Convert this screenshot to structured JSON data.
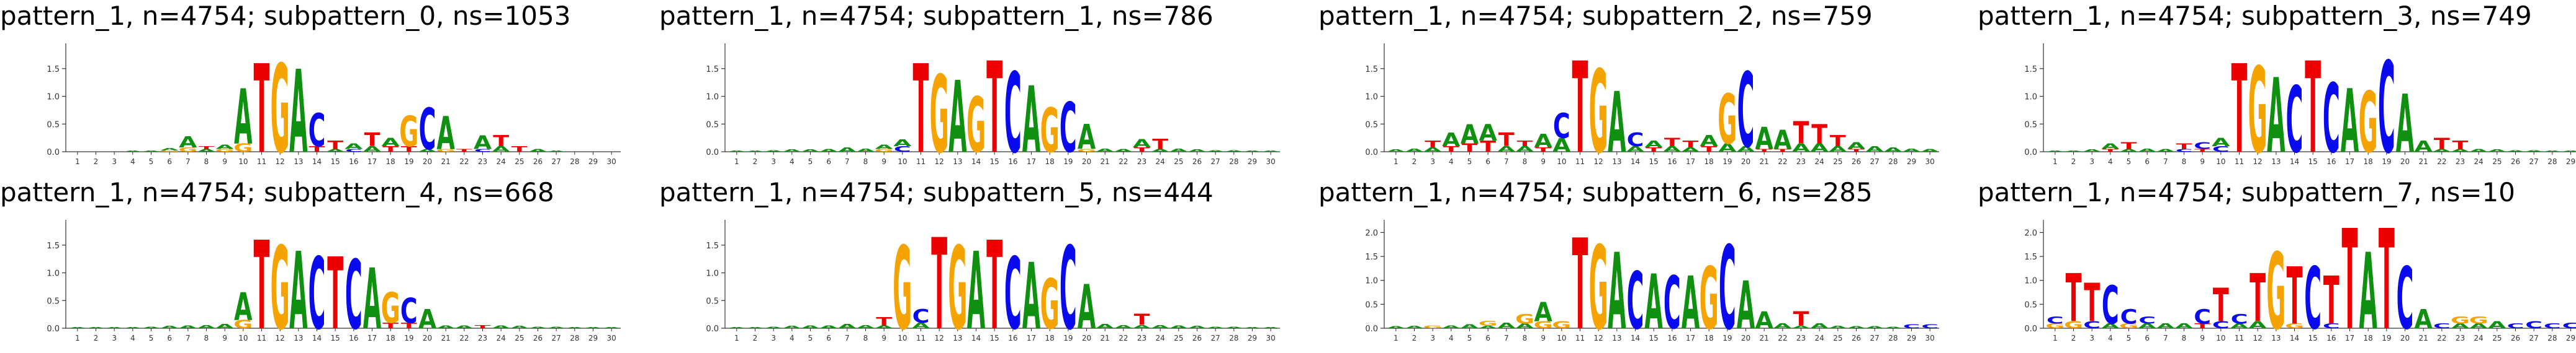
{
  "colors": {
    "A": "#109010",
    "C": "#0a0aee",
    "G": "#f5a300",
    "T": "#ee0000"
  },
  "chart_data": [
    {
      "type": "sequence-logo",
      "title": "pattern_1, n=4754; subpattern_0, ns=1053",
      "positions": [
        "1",
        "2",
        "3",
        "4",
        "5",
        "6",
        "7",
        "8",
        "9",
        "10",
        "11",
        "12",
        "13",
        "14",
        "15",
        "16",
        "17",
        "18",
        "19",
        "20",
        "21",
        "22",
        "23",
        "24",
        "25",
        "26",
        "27",
        "28",
        "29",
        "30"
      ],
      "yticks": [
        "0.0",
        "0.5",
        "1.0",
        "1.5"
      ],
      "ylim": [
        0,
        1.9
      ],
      "columns": [
        {},
        {},
        {},
        {
          "A": 0.02
        },
        {
          "A": 0.02
        },
        {
          "A": 0.04,
          "G": 0.02
        },
        {
          "A": 0.2,
          "G": 0.08
        },
        {
          "A": 0.05,
          "T": 0.05
        },
        {
          "A": 0.08,
          "G": 0.05
        },
        {
          "A": 1.0,
          "G": 0.15
        },
        {
          "T": 1.6
        },
        {
          "G": 1.6
        },
        {
          "A": 1.5
        },
        {
          "C": 0.6,
          "T": 0.1
        },
        {
          "T": 0.15,
          "A": 0.05
        },
        {
          "A": 0.1,
          "C": 0.05
        },
        {
          "T": 0.25,
          "A": 0.1
        },
        {
          "A": 0.15,
          "T": 0.1
        },
        {
          "G": 0.55,
          "T": 0.1
        },
        {
          "C": 0.75,
          "A": 0.05
        },
        {
          "A": 0.6,
          "G": 0.05
        },
        {
          "T": 0.05
        },
        {
          "A": 0.25,
          "C": 0.05
        },
        {
          "T": 0.2,
          "A": 0.1
        },
        {
          "T": 0.1
        },
        {
          "A": 0.05
        },
        {
          "A": 0.02
        },
        {},
        {},
        {}
      ]
    },
    {
      "type": "sequence-logo",
      "title": "pattern_1, n=4754; subpattern_1, ns=786",
      "positions": [
        "1",
        "2",
        "3",
        "4",
        "5",
        "6",
        "7",
        "8",
        "9",
        "10",
        "11",
        "12",
        "13",
        "14",
        "15",
        "16",
        "17",
        "18",
        "19",
        "20",
        "21",
        "22",
        "23",
        "24",
        "25",
        "26",
        "27",
        "28",
        "29",
        "30"
      ],
      "yticks": [
        "0.0",
        "0.5",
        "1.0",
        "1.5"
      ],
      "ylim": [
        0,
        1.9
      ],
      "columns": [
        {
          "A": 0.02
        },
        {
          "A": 0.02
        },
        {
          "A": 0.03
        },
        {
          "A": 0.04
        },
        {
          "A": 0.04
        },
        {
          "A": 0.05
        },
        {
          "A": 0.08
        },
        {
          "A": 0.06
        },
        {
          "A": 0.08,
          "G": 0.05
        },
        {
          "A": 0.12,
          "C": 0.1
        },
        {
          "T": 1.6
        },
        {
          "G": 1.4
        },
        {
          "A": 1.3
        },
        {
          "G": 1.0
        },
        {
          "T": 1.65
        },
        {
          "C": 1.45
        },
        {
          "A": 1.2
        },
        {
          "G": 0.8
        },
        {
          "C": 0.9
        },
        {
          "A": 0.45,
          "G": 0.05
        },
        {
          "A": 0.06
        },
        {
          "A": 0.05
        },
        {
          "A": 0.15,
          "T": 0.08
        },
        {
          "T": 0.18,
          "A": 0.05
        },
        {
          "A": 0.06
        },
        {
          "A": 0.04
        },
        {
          "A": 0.03
        },
        {
          "A": 0.03
        },
        {
          "A": 0.02
        },
        {
          "A": 0.02
        }
      ]
    },
    {
      "type": "sequence-logo",
      "title": "pattern_1, n=4754; subpattern_2, ns=759",
      "positions": [
        "1",
        "2",
        "3",
        "4",
        "5",
        "6",
        "7",
        "8",
        "9",
        "10",
        "11",
        "12",
        "13",
        "14",
        "15",
        "16",
        "17",
        "18",
        "19",
        "20",
        "21",
        "22",
        "23",
        "24",
        "25",
        "26",
        "27",
        "28",
        "29",
        "30"
      ],
      "yticks": [
        "0.0",
        "0.5",
        "1.0",
        "1.5"
      ],
      "ylim": [
        0,
        1.9
      ],
      "columns": [
        {
          "A": 0.04
        },
        {
          "A": 0.06
        },
        {
          "T": 0.12,
          "A": 0.08
        },
        {
          "A": 0.25,
          "T": 0.1
        },
        {
          "A": 0.35,
          "T": 0.15
        },
        {
          "A": 0.3,
          "T": 0.2
        },
        {
          "T": 0.25,
          "A": 0.1
        },
        {
          "A": 0.1,
          "T": 0.1
        },
        {
          "A": 0.25,
          "T": 0.08
        },
        {
          "C": 0.45,
          "A": 0.25
        },
        {
          "T": 1.65
        },
        {
          "G": 1.5
        },
        {
          "A": 1.1
        },
        {
          "C": 0.25,
          "A": 0.1
        },
        {
          "A": 0.12,
          "T": 0.08
        },
        {
          "T": 0.15,
          "A": 0.1
        },
        {
          "T": 0.12,
          "A": 0.08
        },
        {
          "A": 0.2,
          "T": 0.1
        },
        {
          "G": 0.9,
          "A": 0.15
        },
        {
          "C": 1.35,
          "A": 0.1
        },
        {
          "A": 0.4,
          "T": 0.05
        },
        {
          "A": 0.35,
          "T": 0.05
        },
        {
          "T": 0.4,
          "A": 0.15
        },
        {
          "T": 0.35,
          "A": 0.15
        },
        {
          "T": 0.2,
          "A": 0.1
        },
        {
          "A": 0.12,
          "T": 0.05
        },
        {
          "A": 0.1
        },
        {
          "A": 0.08
        },
        {
          "A": 0.06
        },
        {
          "A": 0.05
        }
      ]
    },
    {
      "type": "sequence-logo",
      "title": "pattern_1, n=4754; subpattern_3, ns=749",
      "positions": [
        "1",
        "2",
        "3",
        "4",
        "5",
        "6",
        "7",
        "8",
        "9",
        "10",
        "11",
        "12",
        "13",
        "14",
        "15",
        "16",
        "17",
        "18",
        "19",
        "20",
        "21",
        "22",
        "23",
        "24",
        "25",
        "26",
        "27",
        "28",
        "29",
        "30"
      ],
      "yticks": [
        "0.0",
        "0.5",
        "1.0",
        "1.5"
      ],
      "ylim": [
        0,
        1.9
      ],
      "columns": [
        {
          "A": 0.02
        },
        {
          "A": 0.02
        },
        {
          "A": 0.04
        },
        {
          "A": 0.1,
          "T": 0.05
        },
        {
          "T": 0.12,
          "A": 0.05
        },
        {
          "A": 0.06
        },
        {
          "A": 0.05
        },
        {
          "T": 0.1,
          "C": 0.05
        },
        {
          "C": 0.12,
          "T": 0.05
        },
        {
          "A": 0.15,
          "C": 0.1
        },
        {
          "T": 1.6
        },
        {
          "G": 1.55
        },
        {
          "A": 1.35
        },
        {
          "C": 1.2
        },
        {
          "T": 1.65
        },
        {
          "C": 1.25
        },
        {
          "A": 1.15
        },
        {
          "G": 1.1
        },
        {
          "C": 1.65
        },
        {
          "A": 1.05
        },
        {
          "A": 0.2
        },
        {
          "T": 0.2,
          "A": 0.05
        },
        {
          "T": 0.15,
          "A": 0.05
        },
        {
          "A": 0.05
        },
        {
          "A": 0.04
        },
        {
          "A": 0.03
        },
        {
          "A": 0.03
        },
        {
          "A": 0.02
        },
        {
          "A": 0.02
        },
        {
          "A": 0.02
        }
      ]
    },
    {
      "type": "sequence-logo",
      "title": "pattern_1, n=4754; subpattern_4, ns=668",
      "positions": [
        "1",
        "2",
        "3",
        "4",
        "5",
        "6",
        "7",
        "8",
        "9",
        "10",
        "11",
        "12",
        "13",
        "14",
        "15",
        "16",
        "17",
        "18",
        "19",
        "20",
        "21",
        "22",
        "23",
        "24",
        "25",
        "26",
        "27",
        "28",
        "29",
        "30"
      ],
      "yticks": [
        "0.0",
        "0.5",
        "1.0",
        "1.5"
      ],
      "ylim": [
        0,
        1.9
      ],
      "columns": [
        {
          "A": 0.02
        },
        {
          "A": 0.02
        },
        {
          "A": 0.02
        },
        {
          "A": 0.02
        },
        {
          "A": 0.03
        },
        {
          "A": 0.04
        },
        {
          "A": 0.05
        },
        {
          "A": 0.06
        },
        {
          "A": 0.08
        },
        {
          "A": 0.5,
          "G": 0.15
        },
        {
          "T": 1.6
        },
        {
          "G": 1.5
        },
        {
          "A": 1.4
        },
        {
          "C": 1.3
        },
        {
          "T": 1.3
        },
        {
          "C": 1.25
        },
        {
          "A": 1.1
        },
        {
          "G": 0.55,
          "T": 0.1
        },
        {
          "C": 0.45,
          "T": 0.1
        },
        {
          "A": 0.35
        },
        {
          "A": 0.05
        },
        {
          "A": 0.05
        },
        {
          "T": 0.06
        },
        {
          "A": 0.05
        },
        {
          "A": 0.04
        },
        {
          "A": 0.03
        },
        {
          "A": 0.03
        },
        {
          "A": 0.02
        },
        {
          "A": 0.02
        },
        {
          "A": 0.02
        }
      ]
    },
    {
      "type": "sequence-logo",
      "title": "pattern_1, n=4754; subpattern_5, ns=444",
      "positions": [
        "1",
        "2",
        "3",
        "4",
        "5",
        "6",
        "7",
        "8",
        "9",
        "10",
        "11",
        "12",
        "13",
        "14",
        "15",
        "16",
        "17",
        "18",
        "19",
        "20",
        "21",
        "22",
        "23",
        "24",
        "25",
        "26",
        "27",
        "28",
        "29",
        "30"
      ],
      "yticks": [
        "0.0",
        "0.5",
        "1.0",
        "1.5"
      ],
      "ylim": [
        0,
        1.9
      ],
      "columns": [
        {
          "A": 0.02
        },
        {
          "A": 0.02
        },
        {
          "A": 0.03
        },
        {
          "A": 0.04
        },
        {
          "A": 0.05
        },
        {
          "A": 0.05
        },
        {
          "A": 0.08
        },
        {
          "A": 0.06
        },
        {
          "T": 0.15,
          "A": 0.05
        },
        {
          "G": 1.5
        },
        {
          "C": 0.25,
          "A": 0.1
        },
        {
          "T": 1.65
        },
        {
          "G": 1.5
        },
        {
          "A": 1.4
        },
        {
          "T": 1.6
        },
        {
          "C": 1.3
        },
        {
          "A": 1.2
        },
        {
          "G": 0.9
        },
        {
          "C": 1.5
        },
        {
          "A": 0.8
        },
        {
          "A": 0.08
        },
        {
          "A": 0.06
        },
        {
          "T": 0.2,
          "A": 0.06
        },
        {
          "A": 0.06
        },
        {
          "A": 0.05
        },
        {
          "A": 0.04
        },
        {
          "A": 0.03
        },
        {
          "A": 0.03
        },
        {
          "A": 0.02
        },
        {
          "A": 0.02
        }
      ]
    },
    {
      "type": "sequence-logo",
      "title": "pattern_1, n=4754; subpattern_6, ns=285",
      "positions": [
        "1",
        "2",
        "3",
        "4",
        "5",
        "6",
        "7",
        "8",
        "9",
        "10",
        "11",
        "12",
        "13",
        "14",
        "15",
        "16",
        "17",
        "18",
        "19",
        "20",
        "21",
        "22",
        "23",
        "24",
        "25",
        "26",
        "27",
        "28",
        "29",
        "30"
      ],
      "yticks": [
        "0.0",
        "0.5",
        "1.0",
        "1.5",
        "2.0"
      ],
      "ylim": [
        0,
        2.2
      ],
      "columns": [
        {
          "A": 0.04
        },
        {
          "A": 0.05
        },
        {
          "G": 0.06
        },
        {
          "A": 0.06
        },
        {
          "A": 0.08
        },
        {
          "G": 0.1,
          "A": 0.05
        },
        {
          "A": 0.12
        },
        {
          "G": 0.2,
          "A": 0.1
        },
        {
          "A": 0.4,
          "G": 0.15
        },
        {
          "G": 0.15
        },
        {
          "T": 1.9
        },
        {
          "G": 1.75
        },
        {
          "A": 1.6
        },
        {
          "C": 1.2
        },
        {
          "A": 1.15
        },
        {
          "C": 1.1
        },
        {
          "A": 1.1
        },
        {
          "G": 1.3
        },
        {
          "C": 1.75
        },
        {
          "A": 1.0
        },
        {
          "A": 0.35
        },
        {
          "A": 0.1
        },
        {
          "T": 0.3,
          "A": 0.05
        },
        {
          "A": 0.1
        },
        {
          "A": 0.05
        },
        {
          "A": 0.04
        },
        {
          "A": 0.04
        },
        {
          "A": 0.03
        },
        {
          "C": 0.08
        },
        {
          "C": 0.08
        }
      ]
    },
    {
      "type": "sequence-logo",
      "title": "pattern_1, n=4754; subpattern_7, ns=10",
      "positions": [
        "1",
        "2",
        "3",
        "4",
        "5",
        "6",
        "7",
        "8",
        "9",
        "10",
        "11",
        "12",
        "13",
        "14",
        "15",
        "16",
        "17",
        "18",
        "19",
        "20",
        "21",
        "22",
        "23",
        "24",
        "25",
        "26",
        "27",
        "28",
        "29",
        "30"
      ],
      "yticks": [
        "0.0",
        "0.5",
        "1.0",
        "1.5",
        "2.0"
      ],
      "ylim": [
        0,
        2.2
      ],
      "columns": [
        {
          "C": 0.15,
          "G": 0.1
        },
        {
          "T": 1.0,
          "G": 0.15
        },
        {
          "T": 0.8,
          "C": 0.15
        },
        {
          "C": 0.8,
          "A": 0.1
        },
        {
          "C": 0.3,
          "G": 0.1
        },
        {
          "C": 0.15,
          "A": 0.1
        },
        {
          "A": 0.1
        },
        {
          "A": 0.1
        },
        {
          "C": 0.3,
          "T": 0.1
        },
        {
          "T": 0.7,
          "C": 0.15
        },
        {
          "C": 0.2,
          "A": 0.1
        },
        {
          "T": 1.0,
          "A": 0.15
        },
        {
          "G": 1.6
        },
        {
          "T": 1.2,
          "G": 0.1
        },
        {
          "C": 1.3
        },
        {
          "T": 1.0,
          "C": 0.1
        },
        {
          "T": 2.1
        },
        {
          "A": 1.6
        },
        {
          "T": 2.1
        },
        {
          "C": 1.3
        },
        {
          "A": 0.4
        },
        {
          "C": 0.1
        },
        {
          "G": 0.15,
          "A": 0.1
        },
        {
          "G": 0.15,
          "A": 0.1
        },
        {
          "A": 0.15
        },
        {
          "C": 0.1
        },
        {
          "C": 0.15
        },
        {
          "C": 0.1
        },
        {
          "C": 0.12
        },
        {
          "T": 0.2
        }
      ]
    }
  ]
}
